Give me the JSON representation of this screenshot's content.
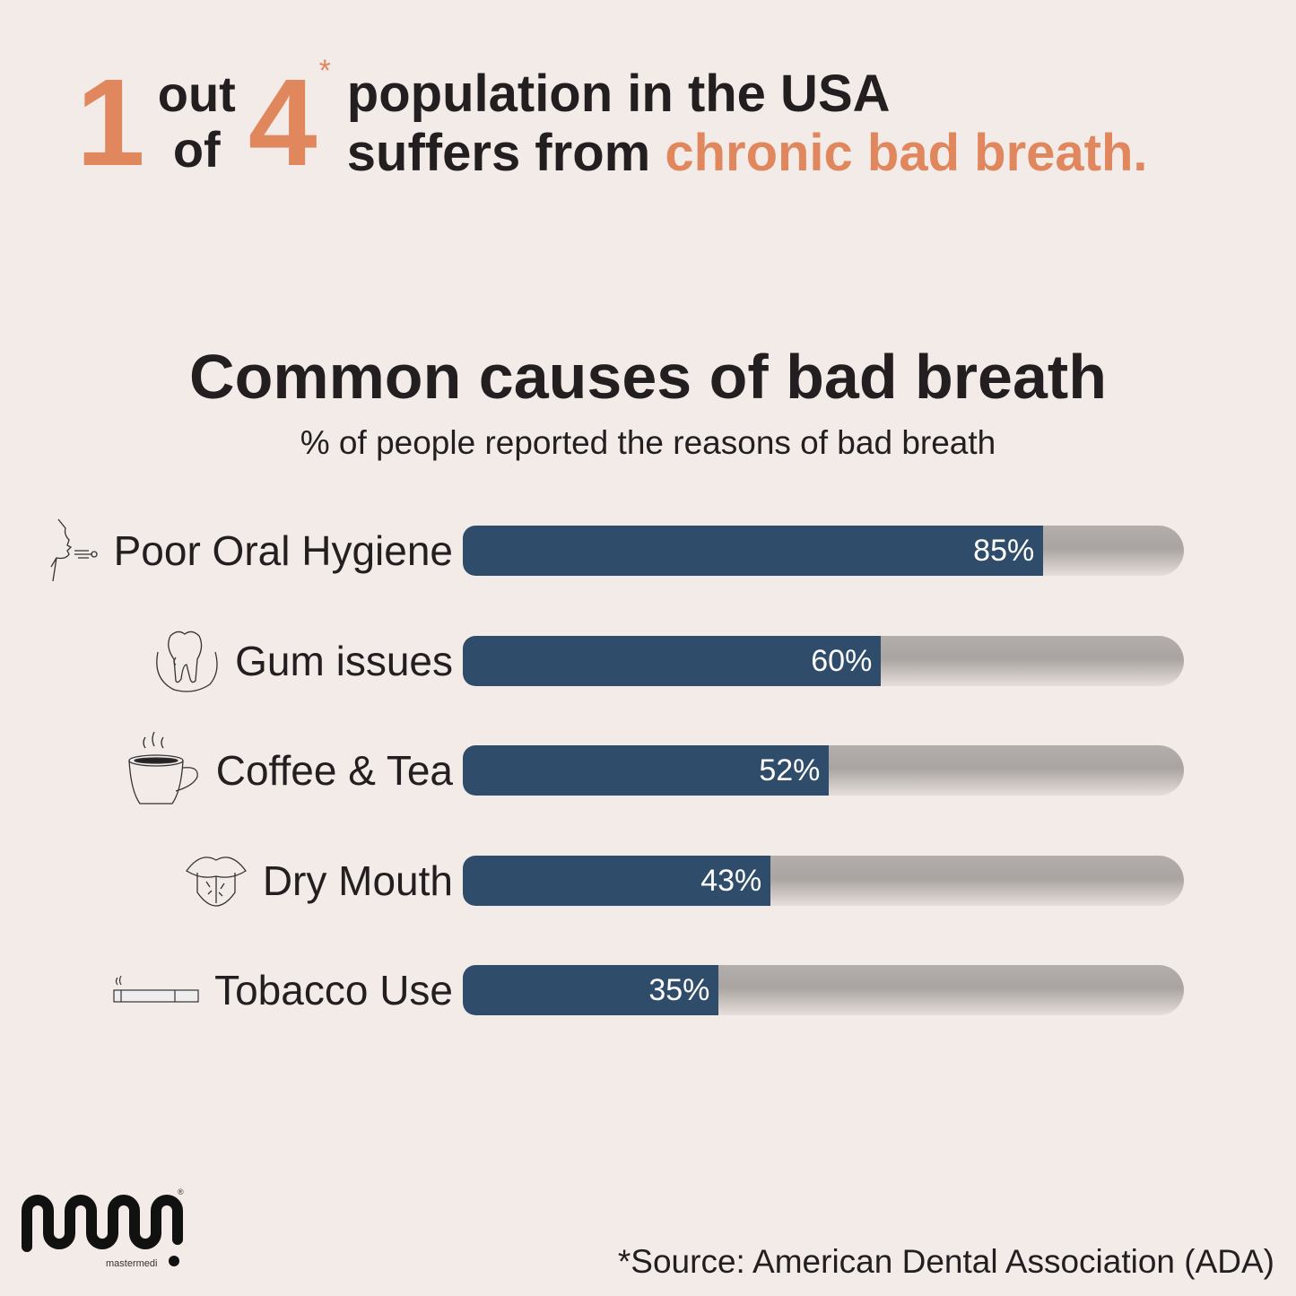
{
  "header": {
    "one": "1",
    "out": "out",
    "of": "of",
    "four": "4",
    "star": "*",
    "line1": "population in the USA",
    "line2_prefix": "suffers from ",
    "line2_accent": "chronic bad breath."
  },
  "chart_data": {
    "type": "bar",
    "orientation": "horizontal",
    "title": "Common causes of bad breath",
    "subtitle": "% of people reported the reasons of bad breath",
    "categories": [
      "Poor Oral Hygiene",
      "Gum issues",
      "Coffee & Tea",
      "Dry Mouth",
      "Tobacco Use"
    ],
    "values": [
      85,
      60,
      52,
      43,
      35
    ],
    "labels": [
      "85%",
      "60%",
      "52%",
      "43%",
      "35%"
    ],
    "icons": [
      "breath-face-icon",
      "tooth-gum-icon",
      "coffee-cup-icon",
      "dry-tongue-icon",
      "cigarette-icon"
    ],
    "colors": {
      "fill": "#2f4d6b",
      "accent": "#e0875e",
      "background": "#f3ebe8"
    }
  },
  "logo": {
    "text": "mastermedi",
    "mark": "®"
  },
  "source": "*Source: American Dental Association (ADA)"
}
